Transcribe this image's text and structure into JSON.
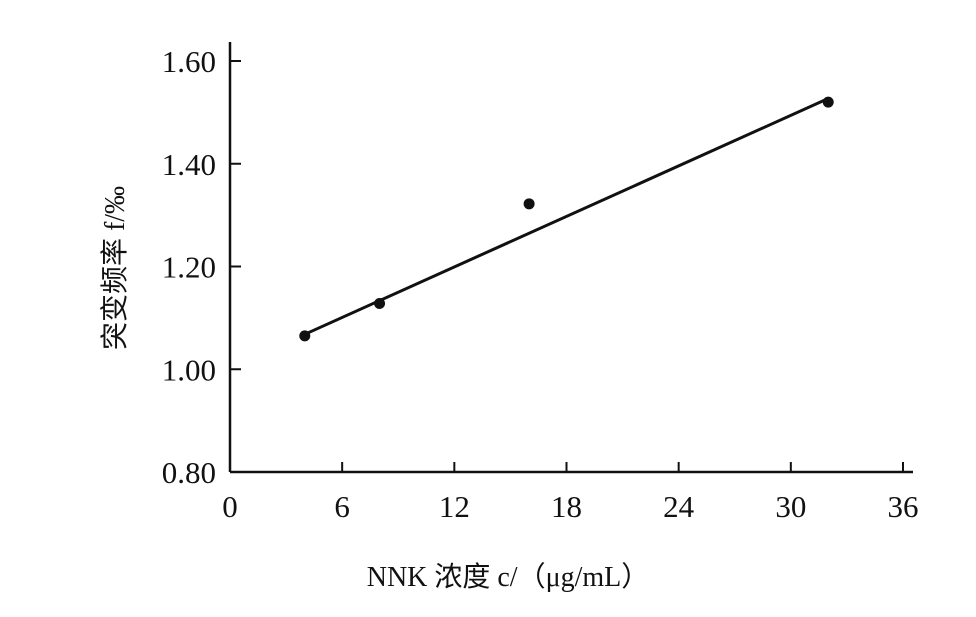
{
  "chart_data": {
    "type": "scatter",
    "title": "",
    "xlabel": "NNK 浓度 c/（μg/mL）",
    "ylabel": "突变频率 f/‰",
    "xlim": [
      0,
      36
    ],
    "ylim": [
      0.8,
      1.6
    ],
    "x_ticks": [
      0,
      6,
      12,
      18,
      24,
      30,
      36
    ],
    "y_ticks": [
      0.8,
      1.0,
      1.2,
      1.4,
      1.6
    ],
    "x_tick_labels": [
      "0",
      "6",
      "12",
      "18",
      "24",
      "30",
      "36"
    ],
    "y_tick_labels": [
      "0.80",
      "1.00",
      "1.20",
      "1.40",
      "1.60"
    ],
    "grid": false,
    "legend": "none",
    "series": [
      {
        "points": [
          {
            "x": 4,
            "y": 1.065
          },
          {
            "x": 8,
            "y": 1.128
          },
          {
            "x": 16,
            "y": 1.322
          },
          {
            "x": 32,
            "y": 1.52
          }
        ]
      }
    ],
    "trendline": {
      "x": [
        4,
        32
      ],
      "y": [
        1.068,
        1.527
      ]
    },
    "colors": {
      "ink": "#111111"
    }
  }
}
